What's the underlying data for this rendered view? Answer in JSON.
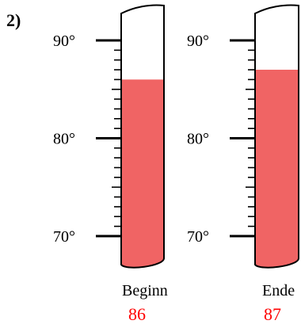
{
  "problem_number": "2)",
  "colors": {
    "fill": "#f06464",
    "outline": "#000000",
    "value_text": "#ff0000",
    "label_text": "#000000"
  },
  "scale": {
    "min": 70,
    "max": 90,
    "major_labels": [
      "70°",
      "80°",
      "90°"
    ]
  },
  "thermometers": [
    {
      "label": "Beginn",
      "value_text": "86",
      "value": 86
    },
    {
      "label": "Ende",
      "value_text": "87",
      "value": 87
    }
  ]
}
